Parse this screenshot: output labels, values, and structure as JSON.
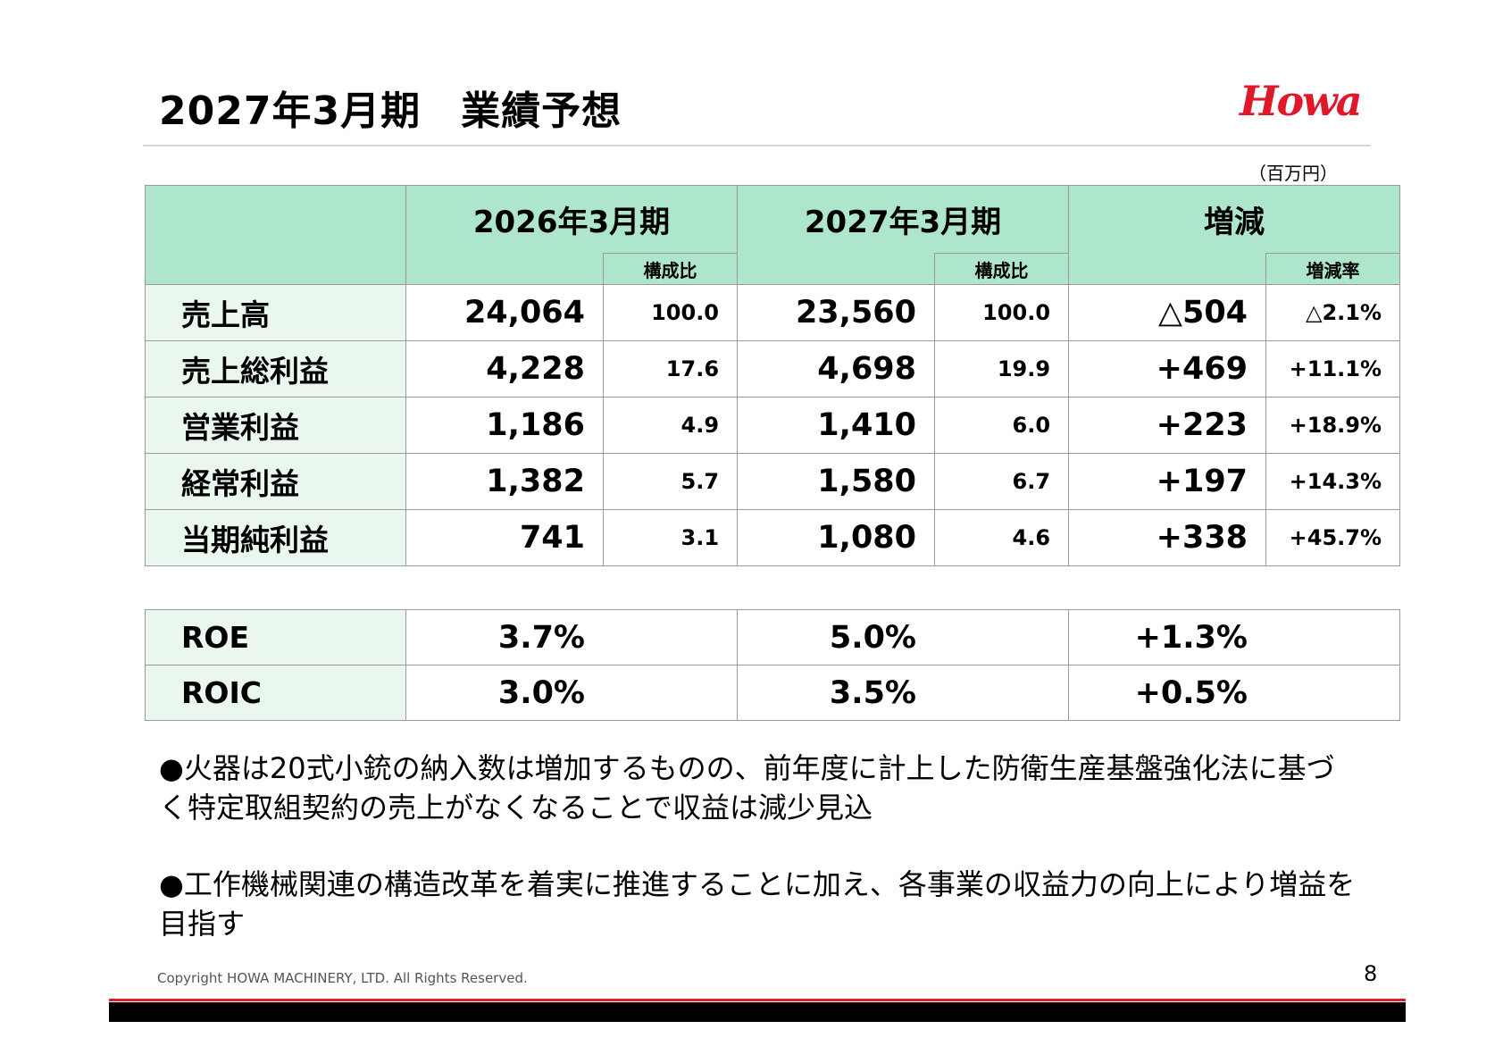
{
  "header": {
    "title": "2027年3月期　業績予想",
    "logo_text": "Howa",
    "brand_color": "#e0182a"
  },
  "unit": "（百万円）",
  "table": {
    "headers": {
      "fy2026": "2026年3月期",
      "fy2027": "2027年3月期",
      "change": "増減",
      "ratio": "構成比",
      "change_rate": "増減率"
    },
    "rows": [
      {
        "label": "売上高",
        "fy2026": "24,064",
        "fy2026_ratio": "100.0",
        "fy2027": "23,560",
        "fy2027_ratio": "100.0",
        "change": "△504",
        "change_rate": "△2.1%"
      },
      {
        "label": "売上総利益",
        "fy2026": "4,228",
        "fy2026_ratio": "17.6",
        "fy2027": "4,698",
        "fy2027_ratio": "19.9",
        "change": "+469",
        "change_rate": "+11.1%"
      },
      {
        "label": "営業利益",
        "fy2026": "1,186",
        "fy2026_ratio": "4.9",
        "fy2027": "1,410",
        "fy2027_ratio": "6.0",
        "change": "+223",
        "change_rate": "+18.9%"
      },
      {
        "label": "経常利益",
        "fy2026": "1,382",
        "fy2026_ratio": "5.7",
        "fy2027": "1,580",
        "fy2027_ratio": "6.7",
        "change": "+197",
        "change_rate": "+14.3%"
      },
      {
        "label": "当期純利益",
        "fy2026": "741",
        "fy2026_ratio": "3.1",
        "fy2027": "1,080",
        "fy2027_ratio": "4.6",
        "change": "+338",
        "change_rate": "+45.7%"
      }
    ]
  },
  "metrics": [
    {
      "label": "ROE",
      "fy2026": "3.7%",
      "fy2027": "5.0%",
      "change": "+1.3%"
    },
    {
      "label": "ROIC",
      "fy2026": "3.0%",
      "fy2027": "3.5%",
      "change": "+0.5%"
    }
  ],
  "notes": [
    "●火器は20式小銃の納入数は増加するものの、前年度に計上した防衛生産基盤強化法に基づく特定取組契約の売上がなくなることで収益は減少見込",
    "●工作機械関連の構造改革を着実に推進することに加え、各事業の収益力の向上により増益を目指す"
  ],
  "footer": {
    "copyright": "Copyright HOWA MACHINERY, LTD. All Rights Reserved.",
    "page_number": "8"
  },
  "colors": {
    "header_fill": "#aee6cc",
    "label_fill": "#e9f7ef",
    "accent_red": "#e0182a"
  }
}
